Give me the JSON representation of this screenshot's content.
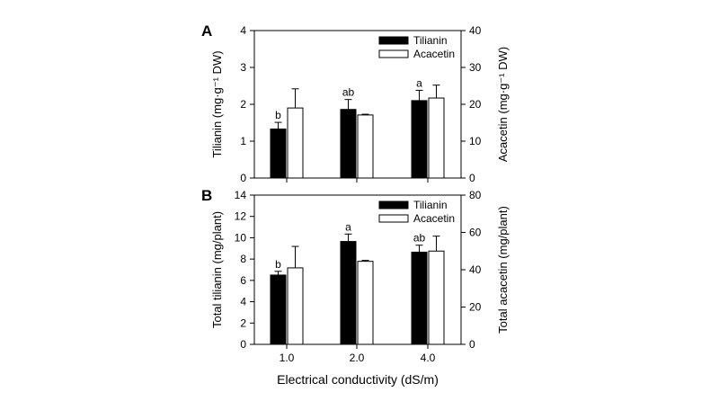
{
  "chart_data": [
    {
      "panel": "A",
      "type": "bar",
      "categories": [
        "1.0",
        "2.0",
        "4.0"
      ],
      "left_axis": {
        "label": "Tilianin (mg·g⁻¹ DW)",
        "range": [
          0,
          4
        ],
        "ticks": [
          0,
          1,
          2,
          3,
          4
        ]
      },
      "right_axis": {
        "label": "Acacetin (mg·g⁻¹ DW)",
        "range": [
          0,
          40
        ],
        "ticks": [
          0,
          10,
          20,
          30,
          40
        ]
      },
      "series": [
        {
          "name": "Tilianin",
          "axis": "left",
          "color": "#000000",
          "values": [
            1.33,
            1.86,
            2.1
          ],
          "errors": [
            0.18,
            0.27,
            0.28
          ],
          "labels": [
            "b",
            "ab",
            "a"
          ]
        },
        {
          "name": "Acacetin",
          "axis": "right",
          "color": "#ffffff",
          "values": [
            19.0,
            17.1,
            21.7
          ],
          "errors": [
            5.2,
            0.2,
            3.5
          ],
          "labels": [
            "",
            "",
            ""
          ]
        }
      ],
      "legend": {
        "position": "top-right",
        "entries": [
          "Tilianin",
          "Acacetin"
        ]
      }
    },
    {
      "panel": "B",
      "type": "bar",
      "categories": [
        "1.0",
        "2.0",
        "4.0"
      ],
      "left_axis": {
        "label": "Total tilianin (mg/plant)",
        "range": [
          0,
          14
        ],
        "ticks": [
          0,
          2,
          4,
          6,
          8,
          10,
          12,
          14
        ]
      },
      "right_axis": {
        "label": "Total acacetin (mg/plant)",
        "range": [
          0,
          80
        ],
        "ticks": [
          0,
          20,
          40,
          60,
          80
        ]
      },
      "series": [
        {
          "name": "Tilianin",
          "axis": "left",
          "color": "#000000",
          "values": [
            6.5,
            9.65,
            8.65
          ],
          "errors": [
            0.35,
            0.7,
            0.65
          ],
          "labels": [
            "b",
            "a",
            "ab"
          ]
        },
        {
          "name": "Acacetin",
          "axis": "right",
          "color": "#ffffff",
          "values": [
            41.0,
            44.5,
            50.0
          ],
          "errors": [
            11.5,
            0.5,
            8.0
          ],
          "labels": [
            "",
            "",
            ""
          ]
        }
      ],
      "legend": {
        "position": "top-right",
        "entries": [
          "Tilianin",
          "Acacetin"
        ]
      },
      "xlabel": "Electrical conductivity (dS/m)"
    }
  ]
}
